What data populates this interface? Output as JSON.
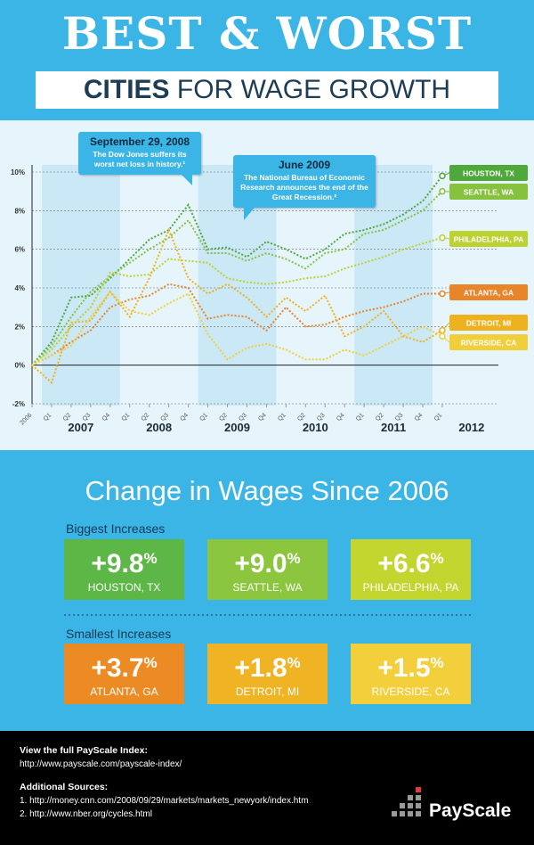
{
  "header": {
    "title": "BEST & WORST",
    "subtitle_bold": "CITIES",
    "subtitle_rest": "FOR WAGE GROWTH"
  },
  "chart_data": {
    "type": "line",
    "categories": [
      "2006",
      "Q1",
      "Q2",
      "Q3",
      "Q4",
      "Q1",
      "Q2",
      "Q3",
      "Q4",
      "Q1",
      "Q2",
      "Q3",
      "Q4",
      "Q1",
      "Q2",
      "Q3",
      "Q4",
      "Q1",
      "Q2",
      "Q3",
      "Q4",
      "Q1"
    ],
    "year_labels": [
      "2007",
      "2008",
      "2009",
      "2010",
      "2011",
      "2012"
    ],
    "ylim": [
      -2,
      10
    ],
    "yticks": [
      {
        "value": -2,
        "label": "-2%"
      },
      {
        "value": 0,
        "label": "0%"
      },
      {
        "value": 2,
        "label": "2%"
      },
      {
        "value": 4,
        "label": "4%"
      },
      {
        "value": 6,
        "label": "6%"
      },
      {
        "value": 8,
        "label": "8%"
      },
      {
        "value": 10,
        "label": "10%"
      }
    ],
    "grid": true,
    "series": [
      {
        "name": "HOUSTON, TX",
        "color": "#4fa83a",
        "values": [
          0,
          1.2,
          3.5,
          3.6,
          4.5,
          5.5,
          6.5,
          7.0,
          8.3,
          6.0,
          6.1,
          5.6,
          6.4,
          6.0,
          5.5,
          6.0,
          6.8,
          7.0,
          7.3,
          7.8,
          8.5,
          9.8
        ]
      },
      {
        "name": "SEATTLE, WA",
        "color": "#86c23d",
        "values": [
          0,
          1.0,
          2.5,
          3.8,
          4.6,
          5.3,
          6.0,
          6.6,
          7.5,
          5.8,
          5.8,
          5.4,
          5.8,
          5.5,
          5.0,
          5.8,
          6.0,
          6.8,
          7.0,
          7.5,
          8.0,
          9.0
        ]
      },
      {
        "name": "PHILADELPHIA, PA",
        "color": "#bdd132",
        "values": [
          0,
          0.8,
          2.0,
          3.0,
          4.8,
          4.6,
          4.7,
          5.5,
          5.4,
          5.3,
          4.5,
          4.3,
          4.2,
          4.3,
          4.5,
          4.6,
          5.0,
          5.3,
          5.6,
          6.0,
          6.3,
          6.6
        ]
      },
      {
        "name": "ATLANTA, GA",
        "color": "#e8842a",
        "values": [
          0,
          0.5,
          1.2,
          1.8,
          3.0,
          3.4,
          3.6,
          4.2,
          4.0,
          2.4,
          2.6,
          2.5,
          1.8,
          3.0,
          2.0,
          2.1,
          2.5,
          2.8,
          3.0,
          3.3,
          3.7,
          3.7
        ]
      },
      {
        "name": "DETROIT, MI",
        "color": "#efb21f",
        "values": [
          0,
          -0.9,
          2.2,
          2.3,
          3.8,
          2.5,
          4.5,
          7.0,
          4.5,
          3.7,
          4.2,
          3.5,
          2.5,
          3.5,
          2.8,
          3.6,
          1.5,
          2.0,
          2.8,
          1.5,
          1.2,
          1.8
        ]
      },
      {
        "name": "RIVERSIDE, CA",
        "color": "#f0cf3a",
        "values": [
          0,
          0.5,
          1.0,
          2.5,
          3.8,
          2.8,
          2.6,
          3.2,
          3.7,
          1.6,
          0.3,
          0.9,
          1.1,
          0.8,
          0.3,
          0.3,
          0.8,
          0.5,
          1.0,
          1.5,
          2.0,
          1.5
        ]
      }
    ],
    "annotations": [
      {
        "date": "September 29, 2008",
        "text": "The Dow Jones suffers its worst net loss in history.¹"
      },
      {
        "date": "June 2009",
        "text": "The National Bureau of Economic Research announces the end of the Great Recession.²"
      }
    ]
  },
  "summary": {
    "title": "Change in Wages Since 2006",
    "biggest_heading": "Biggest Increases",
    "biggest": [
      {
        "value": "+9.8",
        "unit": "%",
        "city": "HOUSTON, TX"
      },
      {
        "value": "+9.0",
        "unit": "%",
        "city": "SEATTLE, WA"
      },
      {
        "value": "+6.6",
        "unit": "%",
        "city": "PHILADELPHIA, PA"
      }
    ],
    "smallest_heading": "Smallest Increases",
    "smallest": [
      {
        "value": "+3.7",
        "unit": "%",
        "city": "ATLANTA, GA"
      },
      {
        "value": "+1.8",
        "unit": "%",
        "city": "DETROIT, MI"
      },
      {
        "value": "+1.5",
        "unit": "%",
        "city": "RIVERSIDE, CA"
      }
    ]
  },
  "footer": {
    "index_heading": "View the full PayScale Index:",
    "index_url": "http://www.payscale.com/payscale-index/",
    "sources_heading": "Additional Sources:",
    "sources": [
      "1. http://money.cnn.com/2008/09/29/markets/markets_newyork/index.htm",
      "2. http://www.nber.org/cycles.html"
    ],
    "logo": "PayScale"
  }
}
